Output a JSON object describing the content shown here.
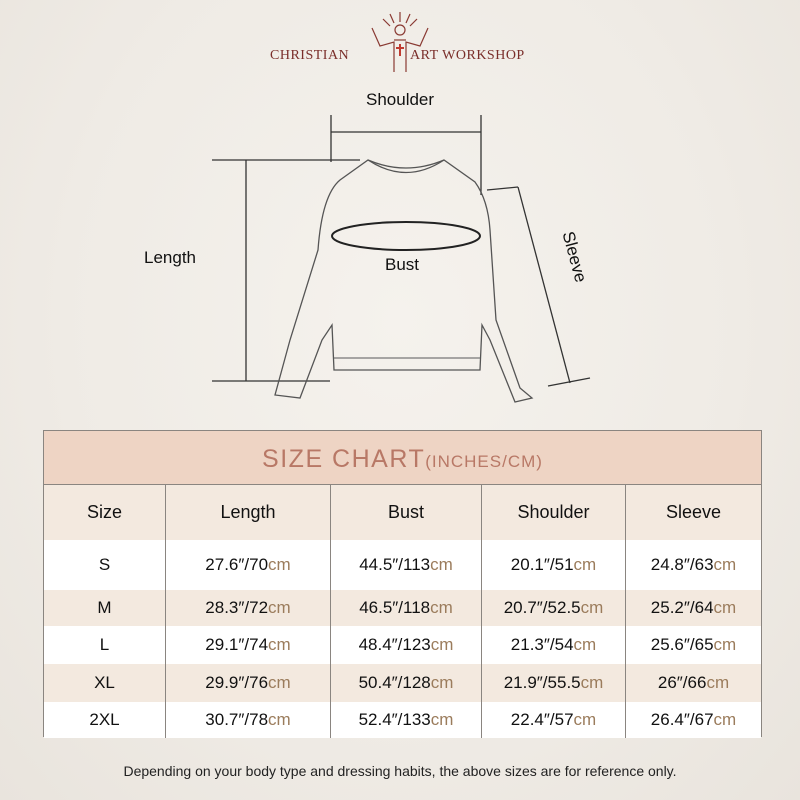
{
  "brand": {
    "left": "CHRISTIAN",
    "right": "ART WORKSHOP"
  },
  "diagram": {
    "shoulder": "Shoulder",
    "length": "Length",
    "bust": "Bust",
    "sleeve": "Sleeve"
  },
  "table": {
    "title": "SIZE CHART",
    "title_unit": "(INCHES/CM)",
    "headers": [
      "Size",
      "Length",
      "Bust",
      "Shoulder",
      "Sleeve"
    ],
    "rows": [
      {
        "size": "S",
        "cells": [
          [
            "27.6″/70",
            "cm"
          ],
          [
            "44.5″/113",
            "cm"
          ],
          [
            "20.1″/51",
            "cm"
          ],
          [
            "24.8″/63",
            "cm"
          ]
        ]
      },
      {
        "size": "M",
        "cells": [
          [
            "28.3″/72",
            "cm"
          ],
          [
            "46.5″/118",
            "cm"
          ],
          [
            "20.7″/52.5",
            "cm"
          ],
          [
            "25.2″/64",
            "cm"
          ]
        ]
      },
      {
        "size": "L",
        "cells": [
          [
            "29.1″/74",
            "cm"
          ],
          [
            "48.4″/123",
            "cm"
          ],
          [
            "21.3″/54",
            "cm"
          ],
          [
            "25.6″/65",
            "cm"
          ]
        ]
      },
      {
        "size": "XL",
        "cells": [
          [
            "29.9″/76",
            "cm"
          ],
          [
            "50.4″/128",
            "cm"
          ],
          [
            "21.9″/55.5",
            "cm"
          ],
          [
            "26″/66",
            "cm"
          ]
        ]
      },
      {
        "size": "2XL",
        "cells": [
          [
            "30.7″/78",
            "cm"
          ],
          [
            "52.4″/133",
            "cm"
          ],
          [
            "22.4″/57",
            "cm"
          ],
          [
            "26.4″/67",
            "cm"
          ]
        ]
      }
    ]
  },
  "note": "Depending on your body type and dressing habits, the above sizes are for reference only.",
  "colors": {
    "title_bg": "#eed4c4",
    "title_text": "#b87866",
    "cm_text": "#9b7c5c",
    "brand": "#7a2e2a"
  }
}
